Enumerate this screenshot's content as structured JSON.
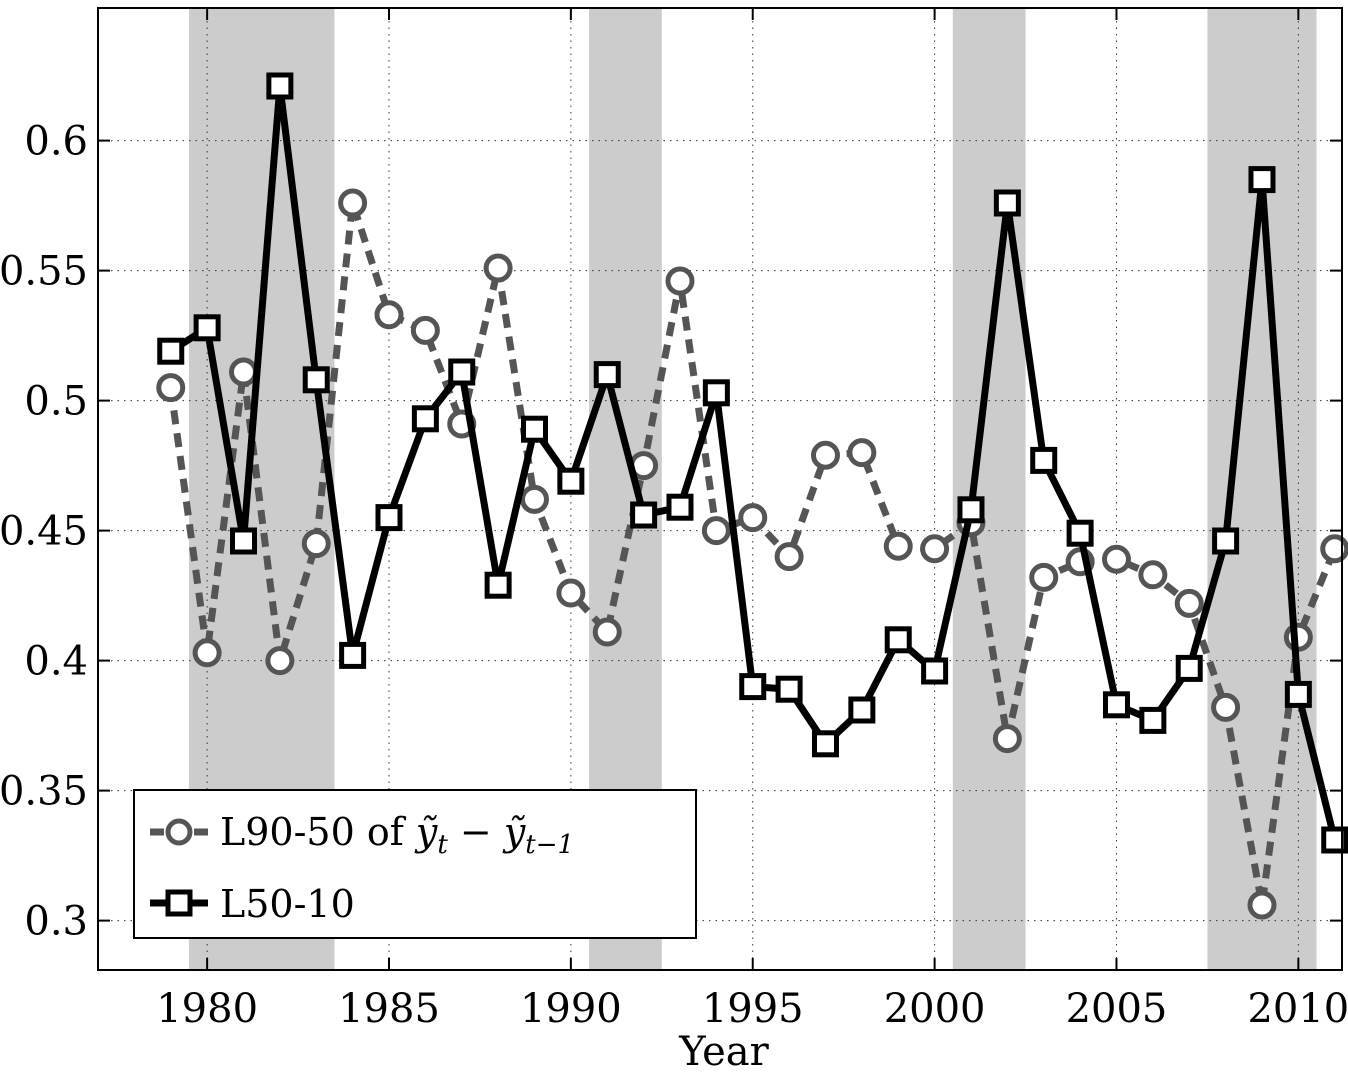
{
  "chart_data": {
    "type": "line",
    "title": "",
    "xlabel": "Year",
    "ylabel": "",
    "xlim": [
      1977,
      2011.2
    ],
    "ylim": [
      0.281,
      0.651
    ],
    "grid": true,
    "legend_position": "bottom-left",
    "xticks": [
      1980,
      1985,
      1990,
      1995,
      2000,
      2005,
      2010
    ],
    "yticks": [
      0.3,
      0.35,
      0.4,
      0.45,
      0.5,
      0.55,
      0.6
    ],
    "xtick_labels": [
      "1980",
      "1985",
      "1990",
      "1995",
      "2000",
      "2005",
      "2010"
    ],
    "ytick_labels": [
      "0.3",
      "0.35",
      "0.4",
      "0.45",
      "0.5",
      "0.55",
      "0.6"
    ],
    "shaded_periods": [
      [
        1979.5,
        1983.5
      ],
      [
        1990.5,
        1992.5
      ],
      [
        2000.5,
        2002.5
      ],
      [
        2007.5,
        2010.5
      ]
    ],
    "x": [
      1979,
      1980,
      1981,
      1982,
      1983,
      1984,
      1985,
      1986,
      1987,
      1988,
      1989,
      1990,
      1991,
      1992,
      1993,
      1994,
      1995,
      1996,
      1997,
      1998,
      1999,
      2000,
      2001,
      2002,
      2003,
      2004,
      2005,
      2006,
      2007,
      2008,
      2009,
      2010,
      2011
    ],
    "series": [
      {
        "name": "L90-50 of ỹt − ỹt−1",
        "legend_main": "L90-50 of ",
        "style": "dashed-circle",
        "color": "#555555",
        "values": [
          0.505,
          0.403,
          0.511,
          0.4,
          0.445,
          0.576,
          0.533,
          0.527,
          0.491,
          0.551,
          0.462,
          0.426,
          0.411,
          0.475,
          0.546,
          0.45,
          0.455,
          0.44,
          0.479,
          0.48,
          0.444,
          0.443,
          0.453,
          0.37,
          0.432,
          0.438,
          0.439,
          0.433,
          0.422,
          0.382,
          0.306,
          0.409,
          0.443
        ]
      },
      {
        "name": "L50-10",
        "legend_main": "L50-10",
        "style": "solid-square",
        "color": "#000000",
        "values": [
          0.519,
          0.528,
          0.446,
          0.621,
          0.508,
          0.402,
          0.455,
          0.493,
          0.511,
          0.429,
          0.489,
          0.469,
          0.51,
          0.456,
          0.459,
          0.503,
          0.39,
          0.389,
          0.368,
          0.381,
          0.408,
          0.396,
          0.458,
          0.576,
          0.477,
          0.449,
          0.383,
          0.377,
          0.397,
          0.446,
          0.585,
          0.387,
          0.331
        ]
      }
    ]
  }
}
